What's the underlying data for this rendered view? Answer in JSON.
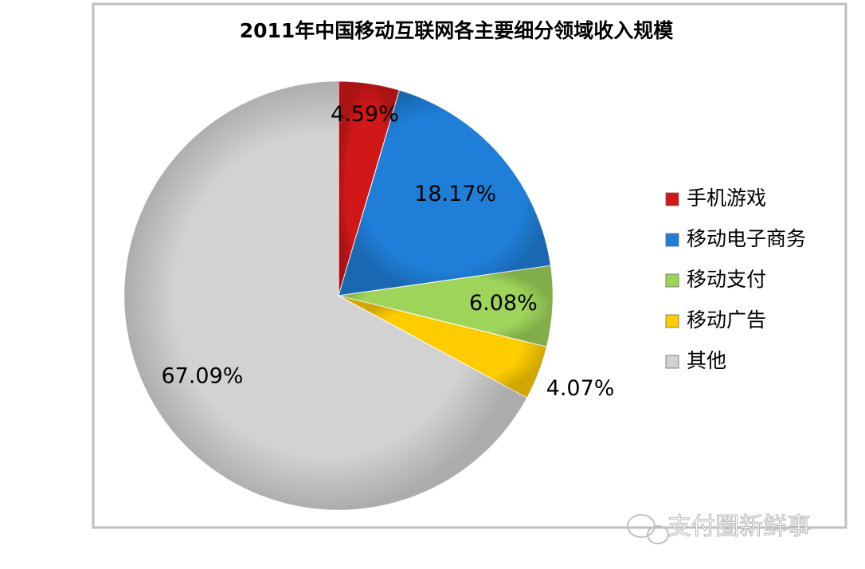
{
  "chart_data": {
    "type": "pie",
    "title": "2011年中国移动互联网各主要细分领域收入规模",
    "categories": [
      "手机游戏",
      "移动电子商务",
      "移动支付",
      "移动广告",
      "其他"
    ],
    "values": [
      4.59,
      18.17,
      6.08,
      4.07,
      67.09
    ],
    "value_labels": [
      "4.59%",
      "18.17%",
      "6.08%",
      "4.07%",
      "67.09%"
    ],
    "colors": [
      "#d01818",
      "#1f7fd8",
      "#9ed45a",
      "#ffcc00",
      "#d2d2d2"
    ],
    "legend": "right"
  },
  "watermark": "支付圈新鲜事"
}
